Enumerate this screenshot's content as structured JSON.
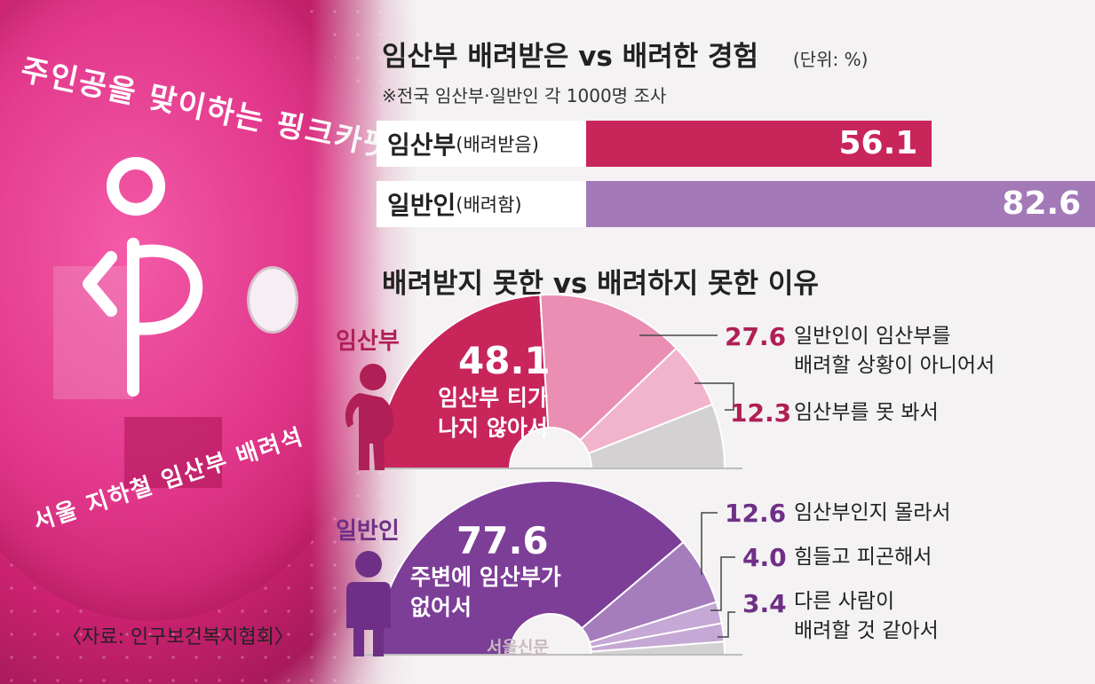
{
  "photo": {
    "arc_text_top": "주인공을 맞이하는 핑크카펫",
    "arc_text_bottom": "서울 지하철 임산부 배려석"
  },
  "colors": {
    "crimson": "#c8255a",
    "crimson_light": "#ea8fb3",
    "crimson_lighter": "#f2b3cc",
    "purple": "#7d3e97",
    "purple_light": "#a57cbc",
    "purple_lighter": "#c5a8d5",
    "gray": "#d3d1d1"
  },
  "source": "〈자료: 인구보건복지협회〉",
  "watermark": "서울신문",
  "chart_data": [
    {
      "type": "bar",
      "title": "임산부 배려받은 vs 배려한 경험",
      "unit": "(단위: %)",
      "note": "※전국 임산부·일반인 각 1000명 조사",
      "categories": [
        {
          "main": "임산부",
          "sub": "(배려받음)"
        },
        {
          "main": "일반인",
          "sub": "(배려함)"
        }
      ],
      "values": [
        56.1,
        82.6
      ],
      "value_labels": [
        "56.1",
        "82.6"
      ],
      "xlim": [
        0,
        100
      ]
    },
    {
      "type": "pie",
      "title": "배려받지 못한 vs 배려하지 못한 이유",
      "groups": [
        {
          "label": "임산부",
          "slices": [
            {
              "value": 48.1,
              "value_label": "48.1",
              "label": "임산부 티가 나지 않아서",
              "label_lines": [
                "임산부 티가",
                "나지 않아서"
              ]
            },
            {
              "value": 27.6,
              "value_label": "27.6",
              "label": "일반인이 임산부를 배려할 상황이 아니어서",
              "label_lines": [
                "일반인이 임산부를",
                "배려할 상황이 아니어서"
              ]
            },
            {
              "value": 12.3,
              "value_label": "12.3",
              "label": "임산부를 못 봐서",
              "label_lines": [
                "임산부를 못 봐서"
              ]
            },
            {
              "value": 12.0
            }
          ]
        },
        {
          "label": "일반인",
          "slices": [
            {
              "value": 77.6,
              "value_label": "77.6",
              "label": "주변에 임산부가 없어서",
              "label_lines": [
                "주변에 임산부가",
                "없어서"
              ]
            },
            {
              "value": 12.6,
              "value_label": "12.6",
              "label": "임산부인지 몰라서",
              "label_lines": [
                "임산부인지 몰라서"
              ]
            },
            {
              "value": 4.0,
              "value_label": "4.0",
              "label": "힘들고 피곤해서",
              "label_lines": [
                "힘들고 피곤해서"
              ]
            },
            {
              "value": 3.4,
              "value_label": "3.4",
              "label": "다른 사람이 배려할 것 같아서",
              "label_lines": [
                "다른 사람이",
                "배려할 것 같아서"
              ]
            },
            {
              "value": 2.4
            }
          ]
        }
      ]
    }
  ]
}
